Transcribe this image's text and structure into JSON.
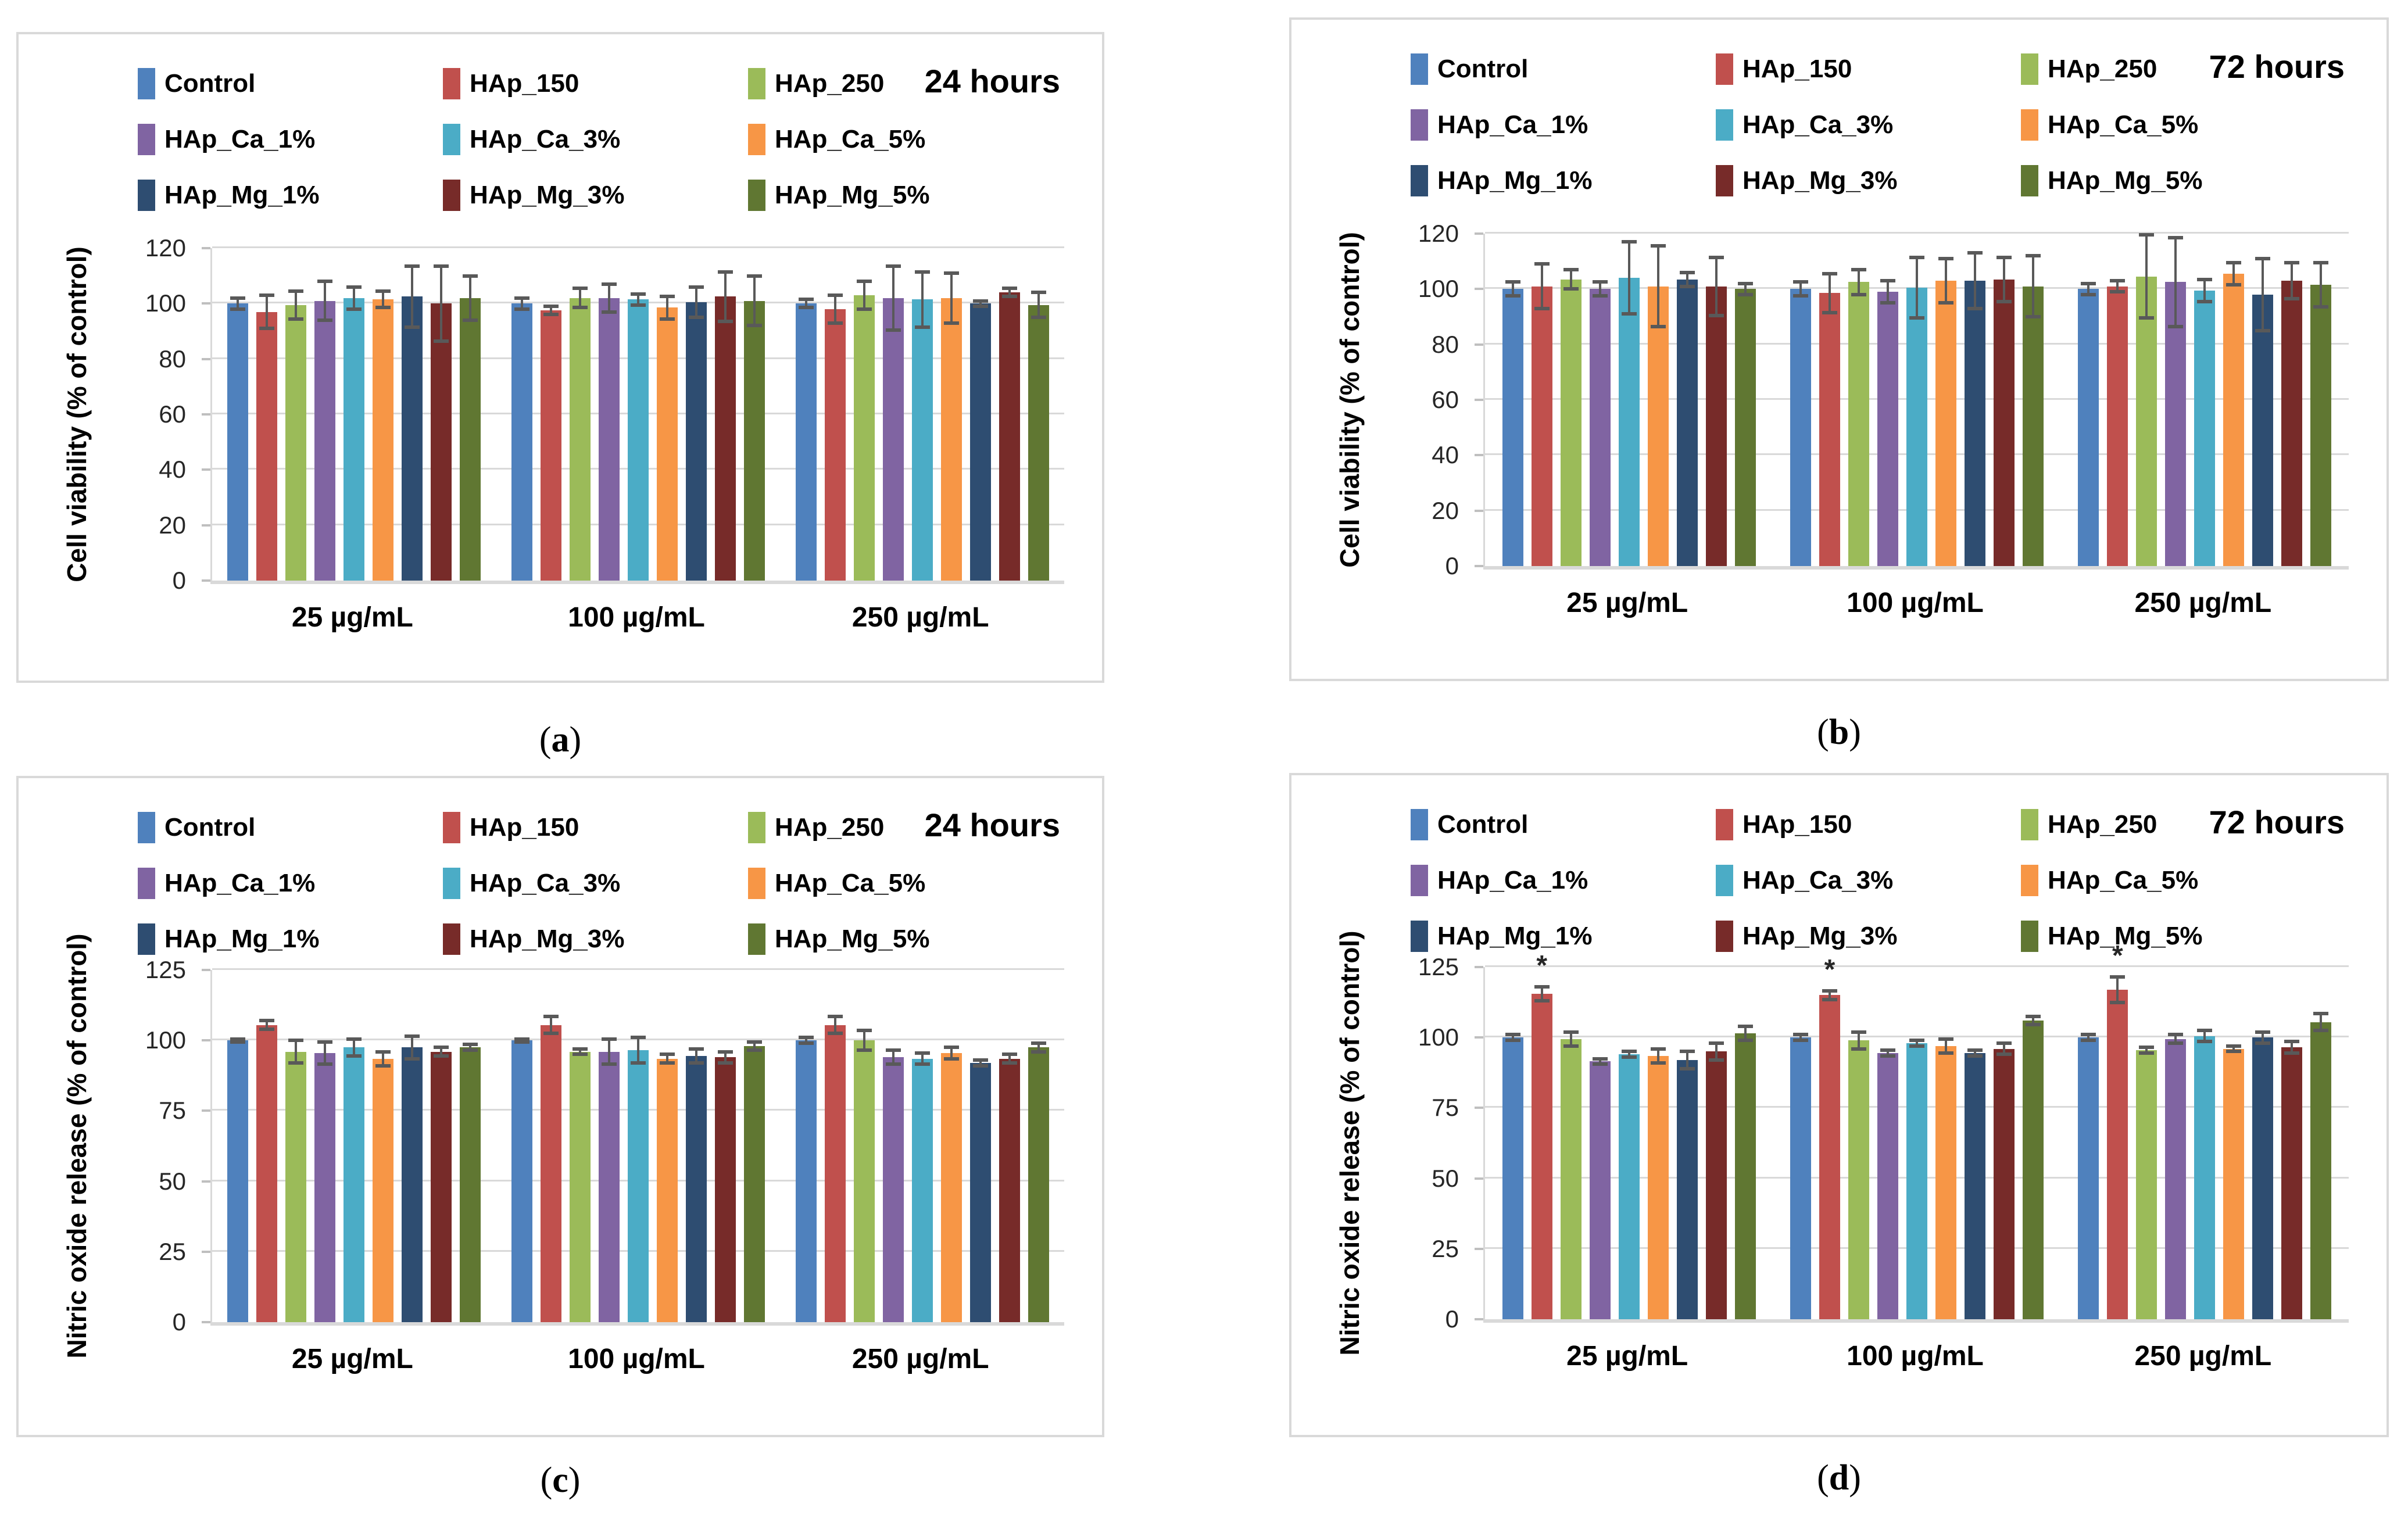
{
  "legend": {
    "entries": [
      {
        "label": "Control",
        "color": "#4F81BD"
      },
      {
        "label": "HAp_150",
        "color": "#C0504D"
      },
      {
        "label": "HAp_250",
        "color": "#9BBB59"
      },
      {
        "label": "HAp_Ca_1%",
        "color": "#8064A2"
      },
      {
        "label": "HAp_Ca_3%",
        "color": "#4BACC6"
      },
      {
        "label": "HAp_Ca_5%",
        "color": "#F79646"
      },
      {
        "label": "HAp_Mg_1%",
        "color": "#2E4D71"
      },
      {
        "label": "HAp_Mg_3%",
        "color": "#772B29"
      },
      {
        "label": "HAp_Mg_5%",
        "color": "#607732"
      }
    ]
  },
  "panels": [
    {
      "id": "a",
      "caption_letter": "a",
      "time_label": "24 hours"
    },
    {
      "id": "b",
      "caption_letter": "b",
      "time_label": "72 hours"
    },
    {
      "id": "c",
      "caption_letter": "c",
      "time_label": "24 hours"
    },
    {
      "id": "d",
      "caption_letter": "d",
      "time_label": "72 hours"
    }
  ],
  "chart_data": [
    {
      "type": "bar",
      "title": "24 hours",
      "ylabel": "Cell viability (% of control)",
      "xlabel": "",
      "ylim": [
        0,
        120
      ],
      "ytick_step": 20,
      "grid": true,
      "legend_position": "top-left",
      "categories": [
        "25 µg/mL",
        "100 µg/mL",
        "250 µg/mL"
      ],
      "series": [
        {
          "name": "Control",
          "values": [
            100,
            100,
            100
          ],
          "errors": [
            2,
            2,
            1.5
          ]
        },
        {
          "name": "HAp_150",
          "values": [
            97,
            97.5,
            98
          ],
          "errors": [
            6,
            1.5,
            5
          ]
        },
        {
          "name": "HAp_250",
          "values": [
            99.5,
            102,
            103
          ],
          "errors": [
            5,
            3.5,
            5
          ]
        },
        {
          "name": "HAp_Ca_1%",
          "values": [
            101,
            102,
            102
          ],
          "errors": [
            7,
            5,
            11.5
          ]
        },
        {
          "name": "HAp_Ca_3%",
          "values": [
            102,
            101.5,
            101.5
          ],
          "errors": [
            4,
            2,
            10
          ]
        },
        {
          "name": "HAp_Ca_5%",
          "values": [
            101.5,
            98.5,
            102
          ],
          "errors": [
            3,
            4,
            9
          ]
        },
        {
          "name": "HAp_Mg_1%",
          "values": [
            102.5,
            100.5,
            100
          ],
          "errors": [
            11,
            5.5,
            1
          ]
        },
        {
          "name": "HAp_Mg_3%",
          "values": [
            100,
            102.5,
            104
          ],
          "errors": [
            13.5,
            9,
            1.5
          ]
        },
        {
          "name": "HAp_Mg_5%",
          "values": [
            102,
            101,
            99.5
          ],
          "errors": [
            8,
            9,
            4.5
          ]
        }
      ]
    },
    {
      "type": "bar",
      "title": "72 hours",
      "ylabel": "Cell viability (% of control)",
      "xlabel": "",
      "ylim": [
        0,
        120
      ],
      "ytick_step": 20,
      "grid": true,
      "legend_position": "top-left",
      "categories": [
        "25 µg/mL",
        "100 µg/mL",
        "250 µg/mL"
      ],
      "series": [
        {
          "name": "Control",
          "values": [
            100,
            100,
            100
          ],
          "errors": [
            2.5,
            2.5,
            2
          ]
        },
        {
          "name": "HAp_150",
          "values": [
            101,
            98.5,
            101
          ],
          "errors": [
            8,
            7,
            2
          ]
        },
        {
          "name": "HAp_250",
          "values": [
            103.5,
            102.5,
            104.5
          ],
          "errors": [
            3.5,
            4.5,
            15
          ]
        },
        {
          "name": "HAp_Ca_1%",
          "values": [
            100,
            99,
            102.5
          ],
          "errors": [
            2.5,
            4,
            16
          ]
        },
        {
          "name": "HAp_Ca_3%",
          "values": [
            104,
            100.5,
            99.5
          ],
          "errors": [
            13,
            11,
            4
          ]
        },
        {
          "name": "HAp_Ca_5%",
          "values": [
            101,
            103,
            105.5
          ],
          "errors": [
            14.5,
            8,
            4
          ]
        },
        {
          "name": "HAp_Mg_1%",
          "values": [
            103.5,
            103,
            98
          ],
          "errors": [
            2.5,
            10,
            13
          ]
        },
        {
          "name": "HAp_Mg_3%",
          "values": [
            101,
            103.5,
            103
          ],
          "errors": [
            10.5,
            8,
            6.5
          ]
        },
        {
          "name": "HAp_Mg_5%",
          "values": [
            100,
            101,
            101.5
          ],
          "errors": [
            2,
            11,
            8
          ]
        }
      ]
    },
    {
      "type": "bar",
      "title": "24 hours",
      "ylabel": "Nitric oxide release (% of control)",
      "xlabel": "",
      "ylim": [
        0,
        125
      ],
      "ytick_step": 25,
      "grid": true,
      "legend_position": "top-left",
      "categories": [
        "25 µg/mL",
        "100 µg/mL",
        "250 µg/mL"
      ],
      "series": [
        {
          "name": "Control",
          "values": [
            100,
            100,
            100
          ],
          "errors": [
            0.5,
            0.5,
            1
          ]
        },
        {
          "name": "HAp_150",
          "values": [
            105.5,
            105.5,
            105.5
          ],
          "errors": [
            1.5,
            3,
            3
          ]
        },
        {
          "name": "HAp_250",
          "values": [
            96,
            96,
            100
          ],
          "errors": [
            4,
            1,
            3.5
          ]
        },
        {
          "name": "HAp_Ca_1%",
          "values": [
            95.5,
            96,
            94
          ],
          "errors": [
            4,
            4.5,
            2.5
          ]
        },
        {
          "name": "HAp_Ca_3%",
          "values": [
            97.5,
            96.5,
            93.5
          ],
          "errors": [
            3,
            4.5,
            2
          ]
        },
        {
          "name": "HAp_Ca_5%",
          "values": [
            93.5,
            93.5,
            95.5
          ],
          "errors": [
            2.5,
            1.5,
            2
          ]
        },
        {
          "name": "HAp_Mg_1%",
          "values": [
            97.5,
            94.5,
            92
          ],
          "errors": [
            4,
            2.5,
            1
          ]
        },
        {
          "name": "HAp_Mg_3%",
          "values": [
            96,
            94,
            93.5
          ],
          "errors": [
            1.5,
            2,
            1.5
          ]
        },
        {
          "name": "HAp_Mg_5%",
          "values": [
            97.5,
            98,
            97.5
          ],
          "errors": [
            1,
            1.5,
            1.5
          ]
        }
      ]
    },
    {
      "type": "bar",
      "title": "72 hours",
      "ylabel": "Nitric oxide release (% of control)",
      "xlabel": "",
      "ylim": [
        0,
        125
      ],
      "ytick_step": 25,
      "grid": true,
      "legend_position": "top-left",
      "significance_marker": "*",
      "categories": [
        "25 µg/mL",
        "100 µg/mL",
        "250 µg/mL"
      ],
      "series": [
        {
          "name": "Control",
          "values": [
            100,
            100,
            100
          ],
          "errors": [
            1,
            1,
            1
          ]
        },
        {
          "name": "HAp_150",
          "values": [
            115.5,
            115,
            117
          ],
          "errors": [
            2.5,
            1.5,
            4.5
          ],
          "significant": [
            true,
            true,
            true
          ]
        },
        {
          "name": "HAp_250",
          "values": [
            99.5,
            99,
            95.5
          ],
          "errors": [
            2.5,
            3,
            1
          ]
        },
        {
          "name": "HAp_Ca_1%",
          "values": [
            91.5,
            94.5,
            99.5
          ],
          "errors": [
            1,
            1,
            1.5
          ]
        },
        {
          "name": "HAp_Ca_3%",
          "values": [
            94,
            98,
            100.5
          ],
          "errors": [
            1,
            1,
            2
          ]
        },
        {
          "name": "HAp_Ca_5%",
          "values": [
            93.5,
            97,
            96
          ],
          "errors": [
            2.5,
            2.5,
            1
          ]
        },
        {
          "name": "HAp_Mg_1%",
          "values": [
            92,
            94.5,
            100
          ],
          "errors": [
            3,
            1,
            2
          ]
        },
        {
          "name": "HAp_Mg_3%",
          "values": [
            95,
            96,
            96.5
          ],
          "errors": [
            3,
            2,
            2
          ]
        },
        {
          "name": "HAp_Mg_5%",
          "values": [
            101.5,
            106,
            105.5
          ],
          "errors": [
            2.5,
            1.5,
            3
          ]
        }
      ]
    }
  ]
}
